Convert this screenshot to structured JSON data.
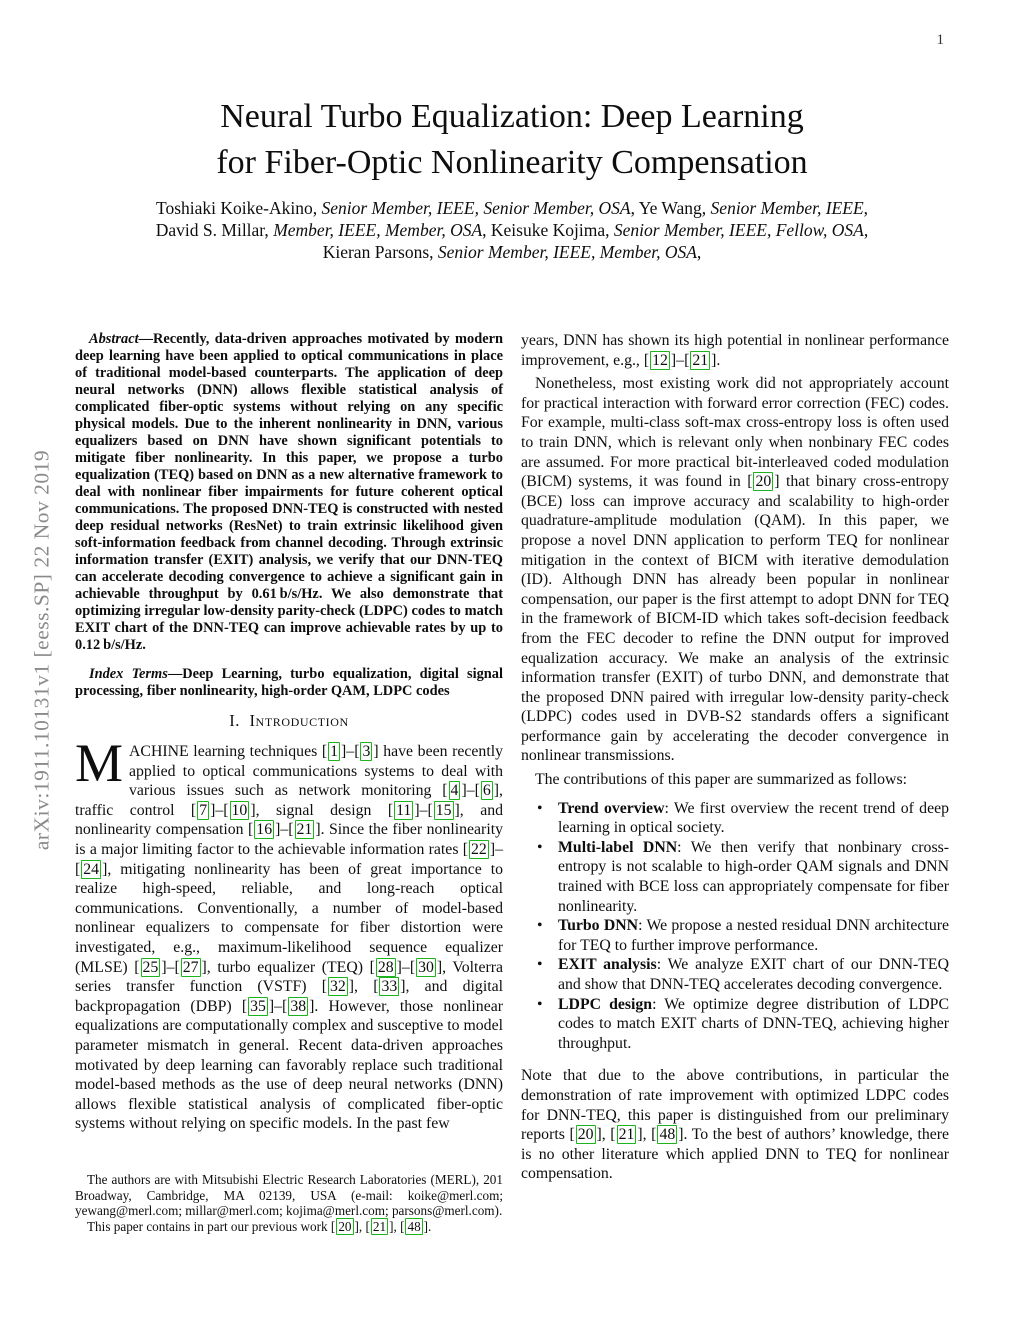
{
  "page": {
    "number": "1"
  },
  "sidebar": {
    "watermark": "arXiv:1911.10131v1  [eess.SP]  22 Nov 2019"
  },
  "colors": {
    "citation_border": "#1cb41c",
    "sidebar_text": "#8a8a8a"
  },
  "header": {
    "title_line1": "Neural Turbo Equalization: Deep Learning",
    "title_line2": "for Fiber-Optic Nonlinearity Compensation",
    "author_lines": [
      [
        {
          "t": "Toshiaki Koike-Akino, "
        },
        {
          "t": "Senior Member, IEEE, Senior Member, OSA",
          "s": "i"
        },
        {
          "t": ", Ye Wang, "
        },
        {
          "t": "Senior Member, IEEE",
          "s": "i"
        },
        {
          "t": ","
        }
      ],
      [
        {
          "t": "David S. Millar, "
        },
        {
          "t": "Member, IEEE, Member, OSA",
          "s": "i"
        },
        {
          "t": ", Keisuke Kojima, "
        },
        {
          "t": "Senior Member, IEEE, Fellow, OSA",
          "s": "i"
        },
        {
          "t": ","
        }
      ],
      [
        {
          "t": "Kieran Parsons, "
        },
        {
          "t": "Senior Member, IEEE, Member, OSA",
          "s": "i"
        },
        {
          "t": ","
        }
      ]
    ]
  },
  "left_column": {
    "abstract": [
      {
        "t": "Abstract",
        "s": "bi"
      },
      {
        "t": "—Recently, data-driven approaches motivated by modern deep learning have been applied to optical communications in place of traditional model-based counterparts. The application of deep neural networks (DNN) allows flexible statistical analysis of complicated fiber-optic systems without relying on any specific physical models. Due to the inherent nonlinearity in DNN, various equalizers based on DNN have shown significant potentials to mitigate fiber nonlinearity. In this paper, we propose a turbo equalization (TEQ) based on DNN as a new alternative framework to deal with nonlinear fiber impairments for future coherent optical communications. The proposed DNN-TEQ is constructed with nested deep residual networks (ResNet) to train extrinsic likelihood given soft-information feedback from channel decoding. Through extrinsic information transfer (EXIT) analysis, we verify that our DNN-TEQ can accelerate decoding convergence to achieve a significant gain in achievable throughput by 0.61 b/s/Hz. We also demonstrate that optimizing irregular low-density parity-check (LDPC) codes to match EXIT chart of the DNN-TEQ can improve achievable rates by up to 0.12 b/s/Hz.",
        "s": "b"
      }
    ],
    "index_terms": [
      {
        "t": "Index Terms",
        "s": "bi"
      },
      {
        "t": "—Deep Learning, turbo equalization, digital signal processing, fiber nonlinearity, high-order QAM, LDPC codes",
        "s": "b"
      }
    ],
    "section_heading": "I.  Introduction",
    "intro_dropcap": "M",
    "intro_paragraph": [
      {
        "t": "ACHINE learning techniques ["
      },
      {
        "t": "1",
        "s": "c"
      },
      {
        "t": "]–["
      },
      {
        "t": "3",
        "s": "c"
      },
      {
        "t": "] have been recently applied to optical communications systems to deal with various issues such as network monitoring ["
      },
      {
        "t": "4",
        "s": "c"
      },
      {
        "t": "]–["
      },
      {
        "t": "6",
        "s": "c"
      },
      {
        "t": "], traffic control ["
      },
      {
        "t": "7",
        "s": "c"
      },
      {
        "t": "]–["
      },
      {
        "t": "10",
        "s": "c"
      },
      {
        "t": "], signal design ["
      },
      {
        "t": "11",
        "s": "c"
      },
      {
        "t": "]–["
      },
      {
        "t": "15",
        "s": "c"
      },
      {
        "t": "], and nonlinearity compensation ["
      },
      {
        "t": "16",
        "s": "c"
      },
      {
        "t": "]–["
      },
      {
        "t": "21",
        "s": "c"
      },
      {
        "t": "]. Since the fiber nonlinearity is a major limiting factor to the achievable information rates ["
      },
      {
        "t": "22",
        "s": "c"
      },
      {
        "t": "]–["
      },
      {
        "t": "24",
        "s": "c"
      },
      {
        "t": "], mitigating nonlinearity has been of great importance to realize high-speed, reliable, and long-reach optical communications. Conventionally, a number of model-based nonlinear equalizers to compensate for fiber distortion were investigated, e.g., maximum-likelihood sequence equalizer (MLSE) ["
      },
      {
        "t": "25",
        "s": "c"
      },
      {
        "t": "]–["
      },
      {
        "t": "27",
        "s": "c"
      },
      {
        "t": "], turbo equalizer (TEQ) ["
      },
      {
        "t": "28",
        "s": "c"
      },
      {
        "t": "]–["
      },
      {
        "t": "30",
        "s": "c"
      },
      {
        "t": "], Volterra series transfer function (VSTF) ["
      },
      {
        "t": "32",
        "s": "c"
      },
      {
        "t": "], ["
      },
      {
        "t": "33",
        "s": "c"
      },
      {
        "t": "], and digital backpropagation (DBP) ["
      },
      {
        "t": "35",
        "s": "c"
      },
      {
        "t": "]–["
      },
      {
        "t": "38",
        "s": "c"
      },
      {
        "t": "]. However, those nonlinear equalizations are computationally complex and susceptive to model parameter mismatch in general. Recent data-driven approaches motivated by deep learning can favorably replace such traditional model-based methods as the use of deep neural networks (DNN) allows flexible statistical analysis of complicated fiber-optic systems without relying on specific models. In the past few"
      }
    ],
    "footnote": {
      "line1": [
        {
          "t": "The authors are with Mitsubishi Electric Research Laboratories (MERL), 201 Broadway, Cambridge, MA 02139, USA (e-mail: koike@merl.com; yewang@merl.com; millar@merl.com; kojima@merl.com; parsons@merl.com)."
        }
      ],
      "line2": [
        {
          "t": "This paper contains in part our previous work ["
        },
        {
          "t": "20",
          "s": "c"
        },
        {
          "t": "], ["
        },
        {
          "t": "21",
          "s": "c"
        },
        {
          "t": "], ["
        },
        {
          "t": "48",
          "s": "c"
        },
        {
          "t": "]."
        }
      ]
    }
  },
  "right_column": {
    "continuation_paragraph": [
      {
        "t": "years, DNN has shown its high potential in nonlinear performance improvement, e.g., ["
      },
      {
        "t": "12",
        "s": "c"
      },
      {
        "t": "]–["
      },
      {
        "t": "21",
        "s": "c"
      },
      {
        "t": "]."
      }
    ],
    "second_paragraph": [
      {
        "t": "Nonetheless, most existing work did not appropriately account for practical interaction with forward error correction (FEC) codes. For example, multi-class soft-max cross-entropy loss is often used to train DNN, which is relevant only when nonbinary FEC codes are assumed. For more practical bit-interleaved coded modulation (BICM) systems, it was found in ["
      },
      {
        "t": "20",
        "s": "c"
      },
      {
        "t": "] that binary cross-entropy (BCE) loss can improve accuracy and scalability to high-order quadrature-amplitude modulation (QAM). In this paper, we propose a novel DNN application to perform TEQ for nonlinear mitigation in the context of BICM with iterative demodulation (ID). Although DNN has already been popular in nonlinear compensation, our paper is the first attempt to adopt DNN for TEQ in the framework of BICM-ID which takes soft-decision feedback from the FEC decoder to refine the DNN output for improved equalization accuracy. We make an analysis of the extrinsic information transfer (EXIT) of turbo DNN, and demonstrate that the proposed DNN paired with irregular low-density parity-check (LDPC) codes used in DVB-S2 standards offers a significant performance gain by accelerating the decoder convergence in nonlinear transmissions."
      }
    ],
    "contributions_intro": "The contributions of this paper are summarized as follows:",
    "bullets": [
      [
        {
          "t": "Trend overview",
          "s": "b"
        },
        {
          "t": ": We first overview the recent trend of deep learning in optical society."
        }
      ],
      [
        {
          "t": "Multi-label DNN",
          "s": "b"
        },
        {
          "t": ": We then verify that nonbinary cross-entropy is not scalable to high-order QAM signals and DNN trained with BCE loss can appropriately compensate for fiber nonlinearity."
        }
      ],
      [
        {
          "t": "Turbo DNN",
          "s": "b"
        },
        {
          "t": ": We propose a nested residual DNN architecture for TEQ to further improve performance."
        }
      ],
      [
        {
          "t": "EXIT analysis",
          "s": "b"
        },
        {
          "t": ": We analyze EXIT chart of our DNN-TEQ and show that DNN-TEQ accelerates decoding convergence."
        }
      ],
      [
        {
          "t": "LDPC design",
          "s": "b"
        },
        {
          "t": ": We optimize degree distribution of LDPC codes to match EXIT charts of DNN-TEQ, achieving higher throughput."
        }
      ]
    ],
    "closing_paragraph": [
      {
        "t": "Note that due to the above contributions, in particular the demonstration of rate improvement with optimized LDPC codes for DNN-TEQ, this paper is distinguished from our preliminary reports ["
      },
      {
        "t": "20",
        "s": "c"
      },
      {
        "t": "], ["
      },
      {
        "t": "21",
        "s": "c"
      },
      {
        "t": "], ["
      },
      {
        "t": "48",
        "s": "c"
      },
      {
        "t": "]. To the best of authors’ knowledge, there is no other literature which applied DNN to TEQ for nonlinear compensation."
      }
    ]
  }
}
